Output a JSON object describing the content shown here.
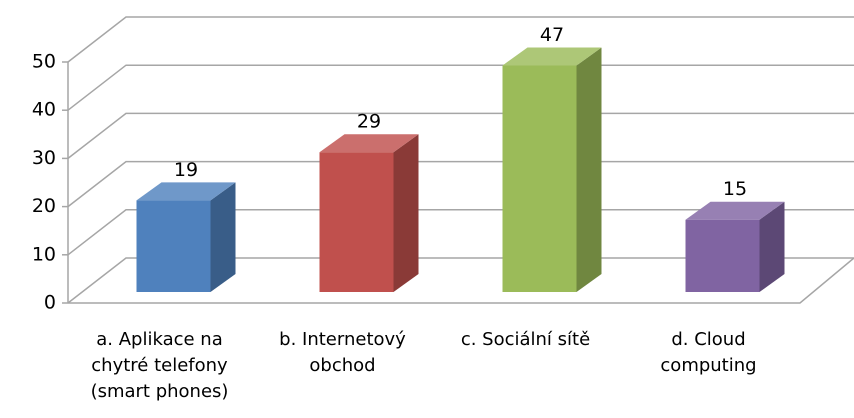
{
  "chart_data": {
    "type": "bar3d",
    "categories": [
      "a. Aplikace na chytré telefony (smart phones)",
      "b. Internetový obchod",
      "c. Sociální sítě",
      "d. Cloud computing"
    ],
    "values": [
      19,
      29,
      47,
      15
    ],
    "colors": [
      "#4f81bd",
      "#c0504d",
      "#9bbb59",
      "#8064a2"
    ],
    "ylim": [
      0,
      50
    ],
    "yticks": [
      0,
      10,
      20,
      30,
      40,
      50
    ],
    "grid": true
  }
}
